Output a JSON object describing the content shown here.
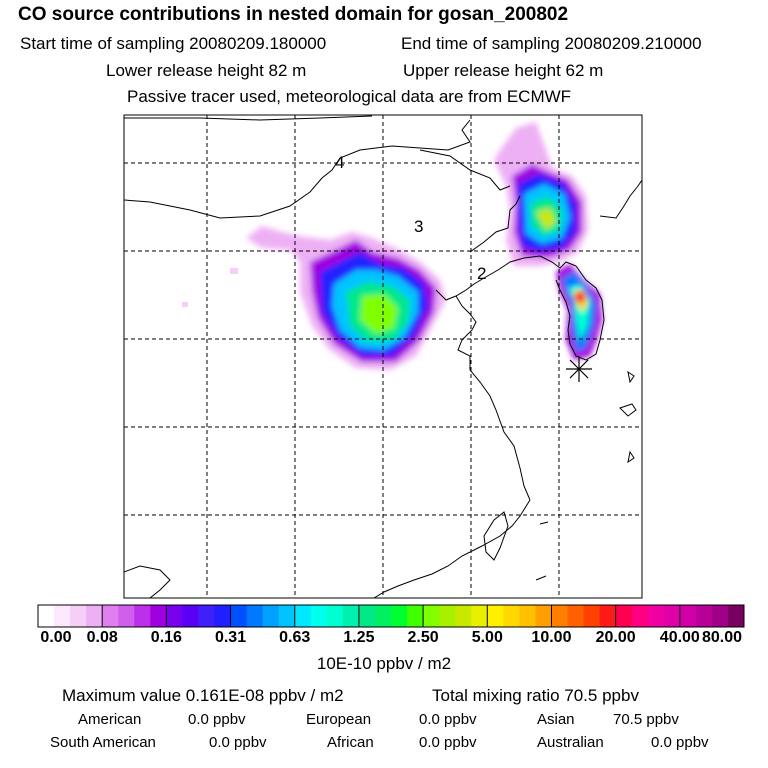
{
  "header": {
    "title": "CO  source contributions in nested domain for gosan_200802",
    "start_label": "Start time of sampling 20080209.180000",
    "end_label": "End time of sampling 20080209.210000",
    "lower_label": "Lower release height   82 m",
    "upper_label": "Upper release height   62 m",
    "note": "Passive tracer used, meteorological data are from ECMWF"
  },
  "map": {
    "region_labels": [
      "4",
      "3",
      "2"
    ],
    "receptor_icon": "asterisk-receptor-icon",
    "land_color": "#ffffff",
    "grid_style": "dashed"
  },
  "colorbar": {
    "ticks": [
      "0.00",
      "0.08",
      "0.16",
      "0.31",
      "0.63",
      "1.25",
      "2.50",
      "5.00",
      "10.00",
      "20.00",
      "40.00",
      "80.00"
    ],
    "colors": [
      "#ffffff",
      "#fce8fc",
      "#f6cff8",
      "#eeb0f4",
      "#e080f0",
      "#d060ec",
      "#bb30e8",
      "#a000e0",
      "#7800ee",
      "#5a00f4",
      "#4020f8",
      "#2020ff",
      "#0050ff",
      "#0078ff",
      "#00a0ff",
      "#00c4ff",
      "#00e8ff",
      "#00ffee",
      "#00ffd0",
      "#00f0b0",
      "#00e88a",
      "#00f060",
      "#00ff30",
      "#40ff00",
      "#80ff00",
      "#a8f000",
      "#c8e800",
      "#e8f000",
      "#fff000",
      "#ffd800",
      "#ffc000",
      "#ffa000",
      "#ff8000",
      "#ff6000",
      "#ff4000",
      "#ff1a1a",
      "#ff0050",
      "#ff0080",
      "#f000a0",
      "#e000a8",
      "#d000a8",
      "#b80098",
      "#a00088",
      "#780060"
    ],
    "units": "10E-10 ppbv / m2"
  },
  "stats": {
    "maximum": "Maximum value  0.161E-08 ppbv / m2",
    "total": "Total mixing ratio       70.5 ppbv",
    "american_label": "American",
    "american_value": "0.0 ppbv",
    "european_label": "European",
    "european_value": "0.0 ppbv",
    "asian_label": "Asian",
    "asian_value": "70.5 ppbv",
    "south_american_label": "South American",
    "south_american_value": "0.0 ppbv",
    "african_label": "African",
    "african_value": "0.0 ppbv",
    "australian_label": "Australian",
    "australian_value": "0.0 ppbv"
  }
}
